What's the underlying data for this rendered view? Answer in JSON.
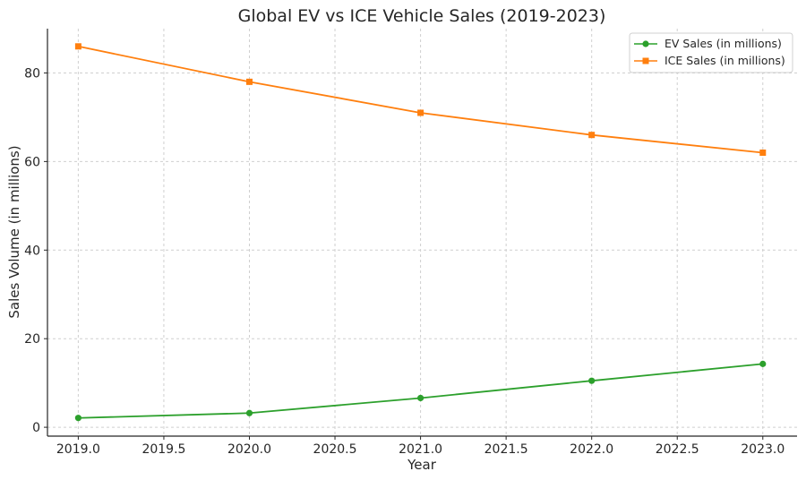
{
  "chart_data": {
    "type": "line",
    "title": "Global EV vs ICE Vehicle Sales (2019-2023)",
    "xlabel": "Year",
    "ylabel": "Sales Volume (in millions)",
    "x": [
      2019,
      2020,
      2021,
      2022,
      2023
    ],
    "xlim": [
      2018.82,
      2023.2
    ],
    "ylim": [
      -2,
      90
    ],
    "x_ticks": [
      2019.0,
      2019.5,
      2020.0,
      2020.5,
      2021.0,
      2021.5,
      2022.0,
      2022.5,
      2023.0
    ],
    "x_tick_labels": [
      "2019.0",
      "2019.5",
      "2020.0",
      "2020.5",
      "2021.0",
      "2021.5",
      "2022.0",
      "2022.5",
      "2023.0"
    ],
    "y_ticks": [
      0,
      20,
      40,
      60,
      80
    ],
    "y_tick_labels": [
      "0",
      "20",
      "40",
      "60",
      "80"
    ],
    "grid": true,
    "legend_position": "top-right",
    "series": [
      {
        "name": "EV Sales (in millions)",
        "values": [
          2.1,
          3.2,
          6.6,
          10.5,
          14.3
        ],
        "color": "#2ca02c",
        "marker": "circle"
      },
      {
        "name": "ICE Sales (in millions)",
        "values": [
          86,
          78,
          71,
          66,
          62
        ],
        "color": "#ff7f0e",
        "marker": "square"
      }
    ]
  }
}
